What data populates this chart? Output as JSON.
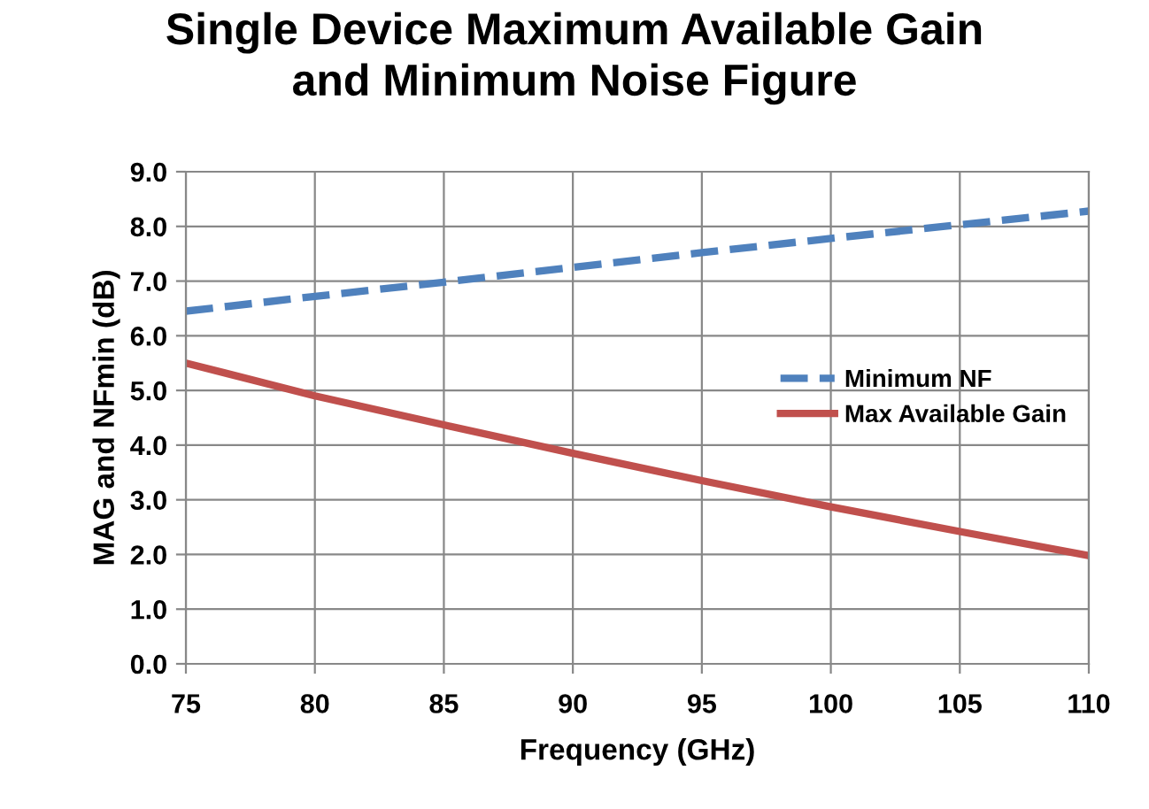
{
  "chart_data": {
    "type": "line",
    "title": "Single Device Maximum Available Gain\nand Minimum Noise Figure",
    "xlabel": "Frequency (GHz)",
    "ylabel": "MAG and NFmin (dB)",
    "x": [
      75,
      80,
      85,
      90,
      95,
      100,
      105,
      110
    ],
    "series": [
      {
        "name": "Minimum NF",
        "color": "#4f81bd",
        "line_style": "dashed",
        "values": [
          6.45,
          6.72,
          6.98,
          7.25,
          7.52,
          7.78,
          8.03,
          8.28
        ]
      },
      {
        "name": "Max Available Gain",
        "color": "#c0504d",
        "line_style": "solid",
        "values": [
          5.5,
          4.9,
          4.37,
          3.85,
          3.35,
          2.87,
          2.42,
          1.98
        ]
      }
    ],
    "xlim": [
      75,
      110
    ],
    "xticks": [
      75,
      80,
      85,
      90,
      95,
      100,
      105,
      110
    ],
    "ylim": [
      0,
      9
    ],
    "yticks": [
      {
        "value": 0,
        "label": "0.0"
      },
      {
        "value": 1,
        "label": "1.0"
      },
      {
        "value": 2,
        "label": "2.0"
      },
      {
        "value": 3,
        "label": "3.0"
      },
      {
        "value": 4,
        "label": "4.0"
      },
      {
        "value": 5,
        "label": "5.0"
      },
      {
        "value": 6,
        "label": "6.0"
      },
      {
        "value": 7,
        "label": "7.0"
      },
      {
        "value": 8,
        "label": "8.0"
      },
      {
        "value": 9,
        "label": "9.0"
      }
    ],
    "grid": true,
    "legend": "right",
    "marker": "none"
  }
}
